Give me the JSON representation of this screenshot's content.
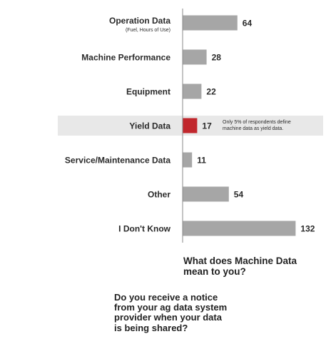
{
  "chart_data": {
    "type": "bar",
    "orientation": "horizontal",
    "categories": [
      "Operation Data",
      "Machine Performance",
      "Equipment",
      "Yield Data",
      "Service/Maintenance Data",
      "Other",
      "I Don't Know"
    ],
    "category_sublabels": [
      "(Fuel, Hours of Use)",
      "",
      "",
      "",
      "",
      "",
      ""
    ],
    "values": [
      64,
      28,
      22,
      17,
      11,
      54,
      132
    ],
    "highlight_index": 3,
    "annotation": {
      "lines": [
        "Only 5% of respondents define",
        "machine data as yield data."
      ]
    },
    "xlim": [
      0,
      140
    ],
    "grid": false,
    "title": "",
    "xlabel": "",
    "ylabel": ""
  },
  "question": {
    "lines": [
      "What does Machine Data",
      "mean to you?"
    ]
  },
  "followup": {
    "lines": [
      "Do you receive a notice",
      "from your ag data system",
      "provider when your data",
      "is being shared?"
    ]
  },
  "colors": {
    "bar": "#a6a6a6",
    "highlight_bar": "#c1272d",
    "highlight_band": "#e8e8e8",
    "axis": "#8a8a8a",
    "text": "#2a2a2a"
  }
}
